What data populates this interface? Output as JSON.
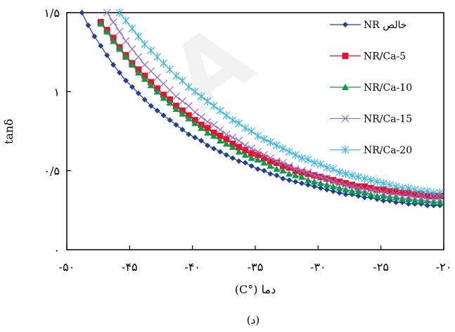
{
  "chart_data": {
    "type": "line",
    "title": "",
    "xlabel": "دما (°C)",
    "ylabel": "tanδ",
    "caption": "(د)",
    "xlim": [
      -50,
      -20
    ],
    "ylim": [
      0,
      1.5
    ],
    "x_ticks": [
      -50,
      -45,
      -40,
      -35,
      -30,
      -25,
      -20
    ],
    "x_tick_labels": [
      "-۵۰",
      "-۴۵",
      "-۴۰",
      "-۳۵",
      "-۳۰",
      "-۲۵",
      "-۲۰"
    ],
    "y_ticks": [
      0,
      0.5,
      1,
      1.5
    ],
    "y_tick_labels": [
      "۰",
      "۰/۵",
      "۱",
      "۱/۵"
    ],
    "grid": false,
    "legend_position": "top-right",
    "series": [
      {
        "name": "NR خالص",
        "color": "#1f3f99",
        "marker": "diamond",
        "x": [
          -48.8,
          -48.3,
          -47.8,
          -47.3,
          -46.8,
          -46.3,
          -45.8,
          -45.3,
          -44.8,
          -44.3,
          -43.8,
          -43.3,
          -42.8,
          -42.3,
          -41.8,
          -41.3,
          -40.8,
          -40.3,
          -39.8,
          -39.3,
          -38.8,
          -38.3,
          -37.8,
          -37.3,
          -36.8,
          -36.3,
          -35.8,
          -35.3,
          -34.8,
          -34.3,
          -33.8,
          -33.3,
          -32.8,
          -32.3,
          -31.8,
          -31.3,
          -30.8,
          -30.3,
          -29.8,
          -29.3,
          -28.8,
          -28.3,
          -27.8,
          -27.3,
          -26.8,
          -26.3,
          -25.8,
          -25.3,
          -24.8,
          -24.3,
          -23.8,
          -23.3,
          -22.8,
          -22.3,
          -21.8,
          -21.3,
          -20.8,
          -20.3
        ],
        "y": [
          1.5,
          1.42,
          1.35,
          1.29,
          1.23,
          1.17,
          1.12,
          1.07,
          1.03,
          0.99,
          0.95,
          0.91,
          0.88,
          0.85,
          0.82,
          0.79,
          0.76,
          0.73,
          0.71,
          0.69,
          0.66,
          0.64,
          0.62,
          0.6,
          0.58,
          0.56,
          0.55,
          0.53,
          0.51,
          0.5,
          0.48,
          0.47,
          0.45,
          0.44,
          0.43,
          0.42,
          0.41,
          0.4,
          0.39,
          0.38,
          0.37,
          0.36,
          0.35,
          0.35,
          0.34,
          0.33,
          0.33,
          0.32,
          0.31,
          0.31,
          0.3,
          0.3,
          0.29,
          0.29,
          0.29,
          0.28,
          0.28,
          0.28
        ]
      },
      {
        "name": "NR/Ca-5",
        "color": "#e8102a",
        "marker": "square",
        "x": [
          -47.3,
          -46.8,
          -46.3,
          -45.8,
          -45.3,
          -44.8,
          -44.3,
          -43.8,
          -43.3,
          -42.8,
          -42.3,
          -41.8,
          -41.3,
          -40.8,
          -40.3,
          -39.8,
          -39.3,
          -38.8,
          -38.3,
          -37.8,
          -37.3,
          -36.8,
          -36.3,
          -35.8,
          -35.3,
          -34.8,
          -34.3,
          -33.8,
          -33.3,
          -32.8,
          -32.3,
          -31.8,
          -31.3,
          -30.8,
          -30.3,
          -29.8,
          -29.3,
          -28.8,
          -28.3,
          -27.8,
          -27.3,
          -26.8,
          -26.3,
          -25.8,
          -25.3,
          -24.8,
          -24.3,
          -23.8,
          -23.3,
          -22.8,
          -22.3,
          -21.8,
          -21.3,
          -20.8,
          -20.3
        ],
        "y": [
          1.44,
          1.39,
          1.34,
          1.28,
          1.23,
          1.18,
          1.14,
          1.1,
          1.06,
          1.02,
          0.98,
          0.95,
          0.91,
          0.88,
          0.85,
          0.82,
          0.79,
          0.77,
          0.74,
          0.72,
          0.7,
          0.67,
          0.65,
          0.63,
          0.61,
          0.6,
          0.58,
          0.56,
          0.55,
          0.53,
          0.52,
          0.5,
          0.49,
          0.48,
          0.47,
          0.46,
          0.45,
          0.44,
          0.43,
          0.42,
          0.41,
          0.4,
          0.4,
          0.39,
          0.38,
          0.38,
          0.37,
          0.37,
          0.36,
          0.36,
          0.35,
          0.35,
          0.34,
          0.34,
          0.34
        ]
      },
      {
        "name": "NR/Ca-10",
        "color": "#0a9a4a",
        "marker": "triangle",
        "x": [
          -47.3,
          -46.8,
          -46.3,
          -45.8,
          -45.3,
          -44.8,
          -44.3,
          -43.8,
          -43.3,
          -42.8,
          -42.3,
          -41.8,
          -41.3,
          -40.8,
          -40.3,
          -39.8,
          -39.3,
          -38.8,
          -38.3,
          -37.8,
          -37.3,
          -36.8,
          -36.3,
          -35.8,
          -35.3,
          -34.8,
          -34.3,
          -33.8,
          -33.3,
          -32.8,
          -32.3,
          -31.8,
          -31.3,
          -30.8,
          -30.3,
          -29.8,
          -29.3,
          -28.8,
          -28.3,
          -27.8,
          -27.3,
          -26.8,
          -26.3,
          -25.8,
          -25.3,
          -24.8,
          -24.3,
          -23.8,
          -23.3,
          -22.8,
          -22.3,
          -21.8,
          -21.3,
          -20.8,
          -20.3
        ],
        "y": [
          1.43,
          1.38,
          1.32,
          1.27,
          1.22,
          1.17,
          1.12,
          1.08,
          1.04,
          1.0,
          0.96,
          0.93,
          0.89,
          0.86,
          0.83,
          0.8,
          0.77,
          0.74,
          0.72,
          0.69,
          0.67,
          0.65,
          0.62,
          0.6,
          0.58,
          0.57,
          0.55,
          0.53,
          0.51,
          0.5,
          0.48,
          0.47,
          0.46,
          0.44,
          0.43,
          0.42,
          0.41,
          0.4,
          0.39,
          0.38,
          0.37,
          0.37,
          0.36,
          0.35,
          0.34,
          0.34,
          0.33,
          0.33,
          0.32,
          0.32,
          0.31,
          0.31,
          0.31,
          0.3,
          0.3
        ]
      },
      {
        "name": "NR/Ca-15",
        "color": "#9a6fc4",
        "marker": "x",
        "x": [
          -46.8,
          -46.3,
          -45.8,
          -45.3,
          -44.8,
          -44.3,
          -43.8,
          -43.3,
          -42.8,
          -42.3,
          -41.8,
          -41.3,
          -40.8,
          -40.3,
          -39.8,
          -39.3,
          -38.8,
          -38.3,
          -37.8,
          -37.3,
          -36.8,
          -36.3,
          -35.8,
          -35.3,
          -34.8,
          -34.3,
          -33.8,
          -33.3,
          -32.8,
          -32.3,
          -31.8,
          -31.3,
          -30.8,
          -30.3,
          -29.8,
          -29.3,
          -28.8,
          -28.3,
          -27.8,
          -27.3,
          -26.8,
          -26.3,
          -25.8,
          -25.3,
          -24.8,
          -24.3,
          -23.8,
          -23.3,
          -22.8,
          -22.3,
          -21.8,
          -21.3,
          -20.8,
          -20.3
        ],
        "y": [
          1.5,
          1.44,
          1.38,
          1.32,
          1.27,
          1.22,
          1.17,
          1.13,
          1.09,
          1.05,
          1.01,
          0.97,
          0.94,
          0.91,
          0.87,
          0.84,
          0.81,
          0.79,
          0.76,
          0.73,
          0.71,
          0.69,
          0.66,
          0.64,
          0.62,
          0.6,
          0.58,
          0.56,
          0.55,
          0.53,
          0.51,
          0.5,
          0.49,
          0.47,
          0.46,
          0.45,
          0.43,
          0.42,
          0.41,
          0.4,
          0.39,
          0.38,
          0.38,
          0.37,
          0.36,
          0.35,
          0.35,
          0.34,
          0.34,
          0.33,
          0.33,
          0.32,
          0.32,
          0.32
        ]
      },
      {
        "name": "NR/Ca-20",
        "color": "#35b6e8",
        "marker": "asterisk",
        "x": [
          -45.8,
          -45.3,
          -44.8,
          -44.3,
          -43.8,
          -43.3,
          -42.8,
          -42.3,
          -41.8,
          -41.3,
          -40.8,
          -40.3,
          -39.8,
          -39.3,
          -38.8,
          -38.3,
          -37.8,
          -37.3,
          -36.8,
          -36.3,
          -35.8,
          -35.3,
          -34.8,
          -34.3,
          -33.8,
          -33.3,
          -32.8,
          -32.3,
          -31.8,
          -31.3,
          -30.8,
          -30.3,
          -29.8,
          -29.3,
          -28.8,
          -28.3,
          -27.8,
          -27.3,
          -26.8,
          -26.3,
          -25.8,
          -25.3,
          -24.8,
          -24.3,
          -23.8,
          -23.3,
          -22.8,
          -22.3,
          -21.8,
          -21.3,
          -20.8,
          -20.3
        ],
        "y": [
          1.5,
          1.45,
          1.4,
          1.35,
          1.3,
          1.26,
          1.22,
          1.18,
          1.14,
          1.1,
          1.07,
          1.03,
          1.0,
          0.97,
          0.94,
          0.91,
          0.88,
          0.85,
          0.82,
          0.8,
          0.77,
          0.75,
          0.72,
          0.7,
          0.68,
          0.66,
          0.64,
          0.62,
          0.6,
          0.58,
          0.57,
          0.55,
          0.54,
          0.52,
          0.51,
          0.49,
          0.48,
          0.47,
          0.46,
          0.45,
          0.44,
          0.43,
          0.42,
          0.41,
          0.4,
          0.39,
          0.39,
          0.38,
          0.37,
          0.37,
          0.36,
          0.36
        ]
      }
    ]
  }
}
